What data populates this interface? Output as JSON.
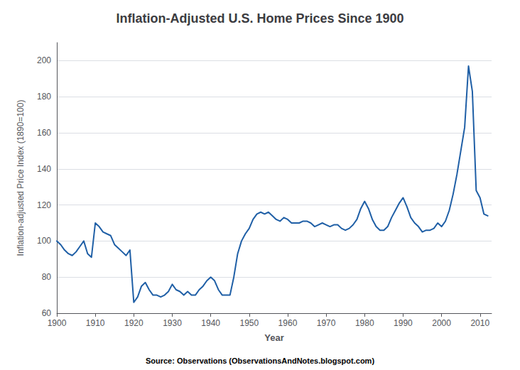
{
  "chart_data": {
    "type": "line",
    "title": "Inflation-Adjusted U.S. Home Prices Since 1900",
    "xlabel": "Year",
    "ylabel": "Inflation-adjusted Price Index (1890=100)",
    "annotations": [
      "Source: Observations (ObservationsAndNotes.blogspot.com)"
    ],
    "color": "#1f5fa6",
    "grid": true,
    "xlim": [
      1900,
      2013
    ],
    "ylim": [
      60,
      210
    ],
    "xticks": [
      1900,
      1910,
      1920,
      1930,
      1940,
      1950,
      1960,
      1970,
      1980,
      1990,
      2000,
      2010
    ],
    "yticks": [
      60,
      80,
      100,
      120,
      140,
      160,
      180,
      200
    ],
    "x": [
      1900,
      1901,
      1902,
      1903,
      1904,
      1905,
      1906,
      1907,
      1908,
      1909,
      1910,
      1911,
      1912,
      1913,
      1914,
      1915,
      1916,
      1917,
      1918,
      1919,
      1920,
      1921,
      1922,
      1923,
      1924,
      1925,
      1926,
      1927,
      1928,
      1929,
      1930,
      1931,
      1932,
      1933,
      1934,
      1935,
      1936,
      1937,
      1938,
      1939,
      1940,
      1941,
      1942,
      1943,
      1944,
      1945,
      1946,
      1947,
      1948,
      1949,
      1950,
      1951,
      1952,
      1953,
      1954,
      1955,
      1956,
      1957,
      1958,
      1959,
      1960,
      1961,
      1962,
      1963,
      1964,
      1965,
      1966,
      1967,
      1968,
      1969,
      1970,
      1971,
      1972,
      1973,
      1974,
      1975,
      1976,
      1977,
      1978,
      1979,
      1980,
      1981,
      1982,
      1983,
      1984,
      1985,
      1986,
      1987,
      1988,
      1989,
      1990,
      1991,
      1992,
      1993,
      1994,
      1995,
      1996,
      1997,
      1998,
      1999,
      2000,
      2001,
      2002,
      2003,
      2004,
      2005,
      2006,
      2007,
      2008,
      2009,
      2010,
      2011,
      2012
    ],
    "values": [
      100,
      98,
      95,
      93,
      92,
      94,
      97,
      100,
      93,
      91,
      110,
      108,
      105,
      104,
      103,
      98,
      96,
      94,
      92,
      95,
      66,
      69,
      75,
      77,
      73,
      70,
      70,
      69,
      70,
      72,
      76,
      73,
      72,
      70,
      72,
      70,
      70,
      73,
      75,
      78,
      80,
      78,
      73,
      70,
      70,
      70,
      80,
      93,
      100,
      104,
      107,
      112,
      115,
      116,
      115,
      116,
      114,
      112,
      111,
      113,
      112,
      110,
      110,
      110,
      111,
      111,
      110,
      108,
      109,
      110,
      109,
      108,
      109,
      109,
      107,
      106,
      107,
      109,
      112,
      118,
      122,
      118,
      112,
      108,
      106,
      106,
      108,
      113,
      117,
      121,
      124,
      119,
      113,
      110,
      108,
      105,
      106,
      106,
      107,
      110,
      108,
      111,
      117,
      126,
      137,
      150,
      163,
      197,
      183,
      128,
      124,
      115,
      114
    ]
  }
}
